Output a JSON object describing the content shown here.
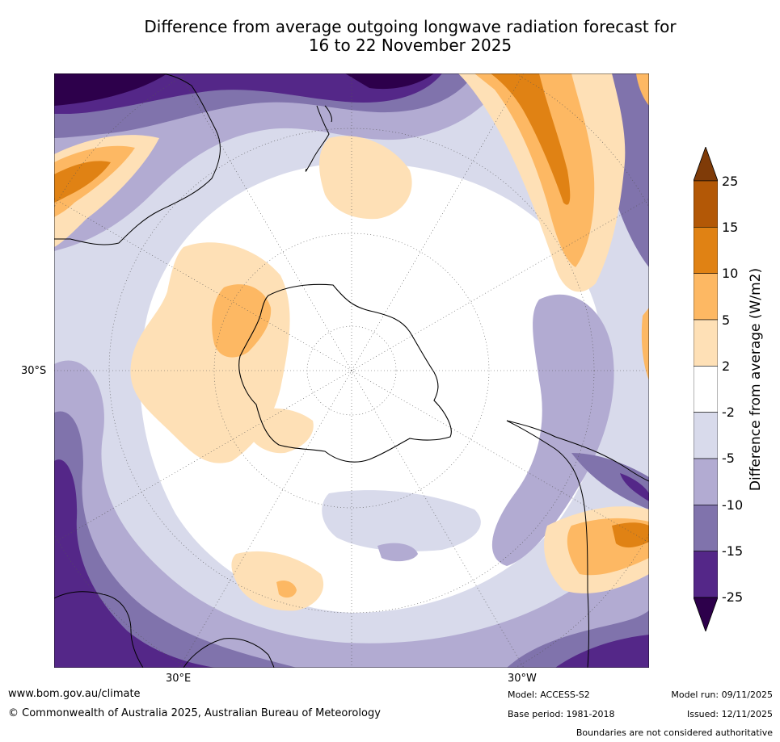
{
  "title": {
    "line1": "Difference from average outgoing longwave radiation forecast for",
    "line2": "16 to 22 November 2025"
  },
  "map": {
    "projection": "south-polar-stereographic",
    "lat_label": "30°S",
    "lon_labels": [
      "30°E",
      "30°W"
    ],
    "palette": {
      "ge25": "#7f3b08",
      "15_25": "#b35806",
      "10_15": "#e08214",
      "5_10": "#fdb863",
      "2_5": "#fee0b6",
      "neutral": "#ffffff",
      "m2_m5": "#d8daeb",
      "m5_m10": "#b2abd2",
      "m10_m15": "#8073ac",
      "m15_m25": "#542788",
      "le_m25": "#2d004b"
    }
  },
  "colorbar": {
    "label": "Difference from average (W/m2)",
    "ticks": [
      "25",
      "15",
      "10",
      "5",
      "2",
      "-2",
      "-5",
      "-10",
      "-15",
      "-25"
    ],
    "colors": [
      "#7f3b08",
      "#b35806",
      "#e08214",
      "#fdb863",
      "#fee0b6",
      "#ffffff",
      "#d8daeb",
      "#b2abd2",
      "#8073ac",
      "#542788",
      "#2d004b"
    ]
  },
  "footer": {
    "url": "www.bom.gov.au/climate",
    "copyright": "© Commonwealth of Australia 2025, Australian Bureau of Meteorology",
    "model": "Model: ACCESS-S2",
    "base_period": "Base period: 1981-2018",
    "model_run": "Model run: 09/11/2025",
    "issued": "Issued: 12/11/2025",
    "disclaimer": "Boundaries are not considered authoritative"
  }
}
